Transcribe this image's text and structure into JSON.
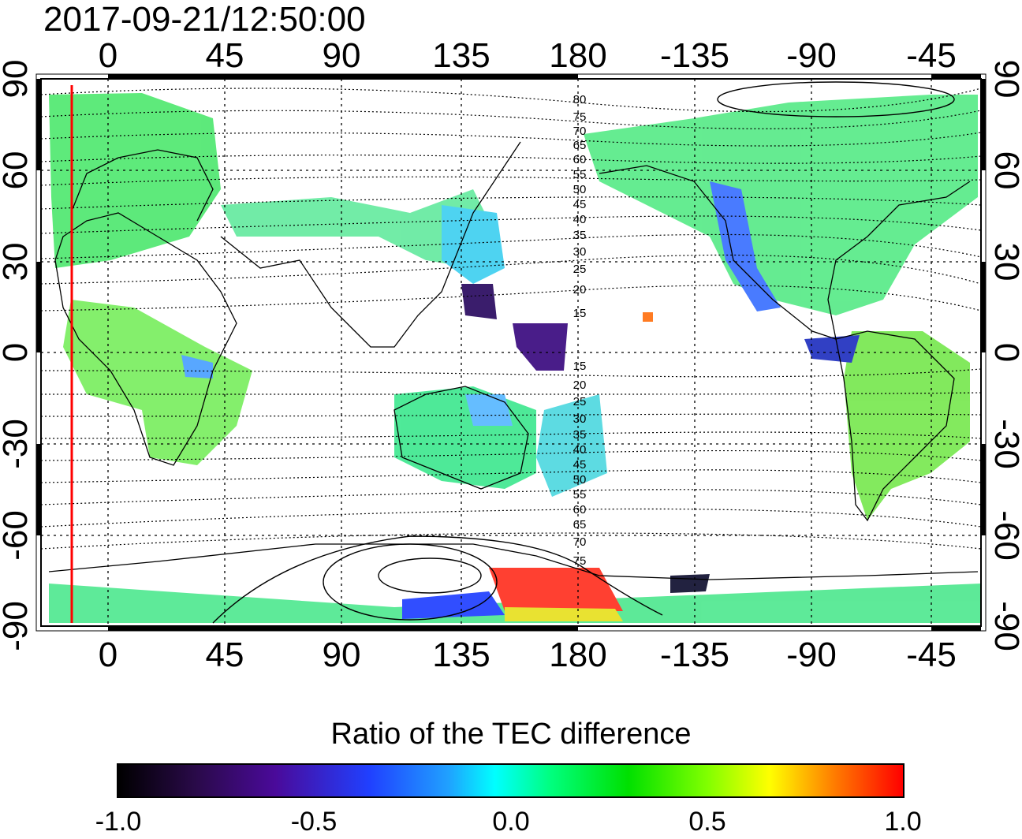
{
  "title": "2017-09-21/12:50:00",
  "map": {
    "lon_ticks": [
      "0",
      "45",
      "90",
      "135",
      "180",
      "-135",
      "-90",
      "-45"
    ],
    "lat_ticks": [
      "90",
      "60",
      "30",
      "0",
      "-30",
      "-60",
      "-90"
    ],
    "contour_labels_north": [
      "80",
      "75",
      "70",
      "65",
      "60",
      "55",
      "50",
      "45",
      "40",
      "35",
      "30",
      "25",
      "20",
      "15"
    ],
    "contour_labels_south": [
      "15",
      "20",
      "25",
      "30",
      "35",
      "40",
      "45",
      "50",
      "55",
      "60",
      "65",
      "70",
      "75"
    ],
    "marker_longitude": -15
  },
  "colorbar": {
    "title": "Ratio of the TEC difference",
    "labels": [
      "-1.0",
      "-0.5",
      "0.0",
      "0.5",
      "1.0"
    ],
    "range": [
      -1.0,
      1.0
    ],
    "colors": [
      "#000000",
      "#4a0a9a",
      "#2040ff",
      "#00ffff",
      "#00e000",
      "#ffff00",
      "#ff0000"
    ]
  }
}
